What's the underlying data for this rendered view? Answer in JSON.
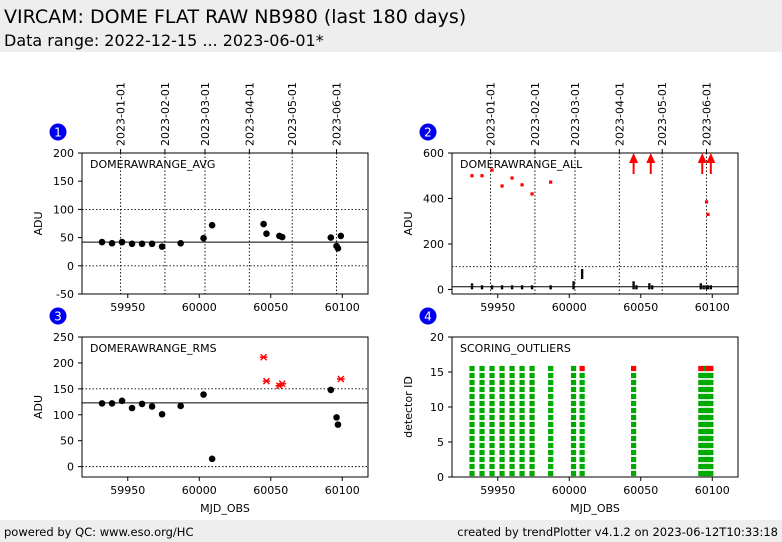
{
  "header": {
    "title": "VIRCAM: DOME FLAT RAW NB980 (last 180 days)",
    "subtitle": "Data range: 2022-12-15 ... 2023-06-01*"
  },
  "footer": {
    "left": "powered by QC: www.eso.org/HC",
    "right": "created by trendPlotter v4.1.2 on 2023-06-12T10:33:18"
  },
  "colors": {
    "badge": "#0000ee",
    "points": "#000000",
    "outlier": "#ff0000",
    "ok": "#00aa00"
  },
  "chart_data": [
    {
      "id": "1",
      "type": "scatter",
      "label": "DOMERAWRANGE_AVG",
      "ylabel": "ADU",
      "xlabel": "",
      "xlim": [
        59918,
        60118
      ],
      "ylim": [
        -50,
        200
      ],
      "xticks": [
        59950,
        60000,
        60050,
        60100
      ],
      "yticks": [
        -50,
        0,
        50,
        100,
        150,
        200
      ],
      "date_ticks": [
        {
          "mjd": 59945,
          "label": "2023-01-01"
        },
        {
          "mjd": 59976,
          "label": "2023-02-01"
        },
        {
          "mjd": 60004,
          "label": "2023-03-01"
        },
        {
          "mjd": 60035,
          "label": "2023-04-01"
        },
        {
          "mjd": 60065,
          "label": "2023-05-01"
        },
        {
          "mjd": 60096,
          "label": "2023-06-01"
        }
      ],
      "hlines": [
        {
          "y": 42,
          "style": "solid"
        },
        {
          "y": 100,
          "style": "dotted"
        },
        {
          "y": 0,
          "style": "dotted"
        }
      ],
      "points": [
        {
          "x": 59932,
          "y": 42
        },
        {
          "x": 59939,
          "y": 40
        },
        {
          "x": 59946,
          "y": 42
        },
        {
          "x": 59953,
          "y": 39
        },
        {
          "x": 59960,
          "y": 39
        },
        {
          "x": 59967,
          "y": 39
        },
        {
          "x": 59974,
          "y": 34
        },
        {
          "x": 59987,
          "y": 40
        },
        {
          "x": 60003,
          "y": 49
        },
        {
          "x": 60009,
          "y": 72
        },
        {
          "x": 60045,
          "y": 74
        },
        {
          "x": 60047,
          "y": 57
        },
        {
          "x": 60056,
          "y": 53
        },
        {
          "x": 60058,
          "y": 51
        },
        {
          "x": 60092,
          "y": 50
        },
        {
          "x": 60096,
          "y": 35
        },
        {
          "x": 60097,
          "y": 31
        },
        {
          "x": 60099,
          "y": 53
        }
      ],
      "outliers": []
    },
    {
      "id": "2",
      "type": "scatter",
      "label": "DOMERAWRANGE_ALL",
      "ylabel": "ADU",
      "xlabel": "",
      "xlim": [
        59918,
        60118
      ],
      "ylim": [
        -20,
        600
      ],
      "xticks": [
        59950,
        60000,
        60050,
        60100
      ],
      "yticks": [
        0,
        200,
        400,
        600
      ],
      "date_ticks": [
        {
          "mjd": 59945,
          "label": "2023-01-01"
        },
        {
          "mjd": 59976,
          "label": "2023-02-01"
        },
        {
          "mjd": 60004,
          "label": "2023-03-01"
        },
        {
          "mjd": 60035,
          "label": "2023-04-01"
        },
        {
          "mjd": 60065,
          "label": "2023-05-01"
        },
        {
          "mjd": 60096,
          "label": "2023-06-01"
        }
      ],
      "hlines": [
        {
          "y": 12,
          "style": "solid"
        },
        {
          "y": 100,
          "style": "dotted"
        }
      ],
      "clusters": [
        {
          "x": 59932,
          "y0": 5,
          "y1": 28
        },
        {
          "x": 59939,
          "y0": 5,
          "y1": 20
        },
        {
          "x": 59946,
          "y0": 5,
          "y1": 22
        },
        {
          "x": 59953,
          "y0": 5,
          "y1": 20
        },
        {
          "x": 59960,
          "y0": 5,
          "y1": 20
        },
        {
          "x": 59967,
          "y0": 5,
          "y1": 22
        },
        {
          "x": 59974,
          "y0": 5,
          "y1": 20
        },
        {
          "x": 59987,
          "y0": 5,
          "y1": 22
        },
        {
          "x": 60003,
          "y0": 5,
          "y1": 35
        },
        {
          "x": 60009,
          "y0": 50,
          "y1": 90
        },
        {
          "x": 60045,
          "y0": 5,
          "y1": 38
        },
        {
          "x": 60047,
          "y0": 5,
          "y1": 22
        },
        {
          "x": 60056,
          "y0": 5,
          "y1": 30
        },
        {
          "x": 60058,
          "y0": 5,
          "y1": 20
        },
        {
          "x": 60092,
          "y0": 5,
          "y1": 25
        },
        {
          "x": 60094,
          "y0": 5,
          "y1": 20
        },
        {
          "x": 60096,
          "y0": 5,
          "y1": 20
        },
        {
          "x": 60097,
          "y0": 5,
          "y1": 20
        },
        {
          "x": 60099,
          "y0": 5,
          "y1": 20
        }
      ],
      "outliers": [
        {
          "x": 59932,
          "y": 500
        },
        {
          "x": 59939,
          "y": 500
        },
        {
          "x": 59946,
          "y": 525
        },
        {
          "x": 59953,
          "y": 455
        },
        {
          "x": 59960,
          "y": 490
        },
        {
          "x": 59967,
          "y": 460
        },
        {
          "x": 59974,
          "y": 420
        },
        {
          "x": 59987,
          "y": 472
        },
        {
          "x": 60096,
          "y": 385
        },
        {
          "x": 60097,
          "y": 330
        }
      ],
      "arrows": [
        {
          "x": 60045
        },
        {
          "x": 60057
        },
        {
          "x": 60093
        },
        {
          "x": 60099
        }
      ]
    },
    {
      "id": "3",
      "type": "scatter",
      "label": "DOMERAWRANGE_RMS",
      "ylabel": "ADU",
      "xlabel": "MJD_OBS",
      "xlim": [
        59918,
        60118
      ],
      "ylim": [
        -20,
        250
      ],
      "xticks": [
        59950,
        60000,
        60050,
        60100
      ],
      "yticks": [
        0,
        50,
        100,
        150,
        200,
        250
      ],
      "date_ticks": [],
      "hlines": [
        {
          "y": 123,
          "style": "solid"
        },
        {
          "y": 150,
          "style": "dotted"
        },
        {
          "y": 0,
          "style": "dotted"
        }
      ],
      "points": [
        {
          "x": 59932,
          "y": 122
        },
        {
          "x": 59939,
          "y": 122
        },
        {
          "x": 59946,
          "y": 127
        },
        {
          "x": 59953,
          "y": 113
        },
        {
          "x": 59960,
          "y": 121
        },
        {
          "x": 59967,
          "y": 116
        },
        {
          "x": 59974,
          "y": 101
        },
        {
          "x": 59987,
          "y": 117
        },
        {
          "x": 60003,
          "y": 139
        },
        {
          "x": 60009,
          "y": 15
        },
        {
          "x": 60092,
          "y": 148
        },
        {
          "x": 60096,
          "y": 95
        },
        {
          "x": 60097,
          "y": 81
        }
      ],
      "outliers": [
        {
          "x": 60045,
          "y": 211
        },
        {
          "x": 60047,
          "y": 165
        },
        {
          "x": 60056,
          "y": 156
        },
        {
          "x": 60058,
          "y": 160
        },
        {
          "x": 60099,
          "y": 169
        }
      ]
    },
    {
      "id": "4",
      "type": "scatter",
      "label": "SCORING_OUTLIERS",
      "ylabel": "detector ID",
      "xlabel": "MJD_OBS",
      "xlim": [
        59918,
        60118
      ],
      "ylim": [
        0,
        20
      ],
      "xticks": [
        59950,
        60000,
        60050,
        60100
      ],
      "yticks": [
        0,
        5,
        10,
        15,
        20
      ],
      "date_ticks": [],
      "columns": [
        {
          "x": 59932,
          "red": []
        },
        {
          "x": 59939,
          "red": []
        },
        {
          "x": 59946,
          "red": []
        },
        {
          "x": 59953,
          "red": []
        },
        {
          "x": 59960,
          "red": []
        },
        {
          "x": 59967,
          "red": []
        },
        {
          "x": 59974,
          "red": []
        },
        {
          "x": 59987,
          "red": []
        },
        {
          "x": 60003,
          "red": []
        },
        {
          "x": 60009,
          "red": [
            16
          ]
        },
        {
          "x": 60045,
          "red": [
            16
          ]
        },
        {
          "x": 60092,
          "red": [
            16
          ]
        },
        {
          "x": 60094,
          "red": [
            16
          ]
        },
        {
          "x": 60096,
          "red": []
        },
        {
          "x": 60097,
          "red": [
            16
          ]
        },
        {
          "x": 60099,
          "red": [
            16
          ]
        }
      ],
      "detectors": [
        1,
        16
      ]
    }
  ]
}
